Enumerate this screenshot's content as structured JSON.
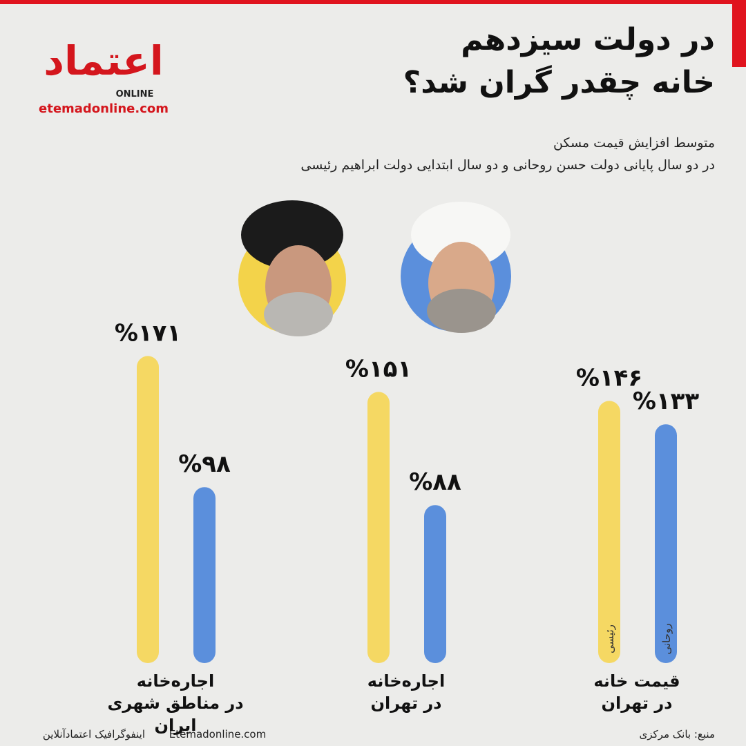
{
  "branding": {
    "logo": "اعتماد",
    "logo_sub": "ONLINE",
    "url": "etemadonline.com"
  },
  "chart_data": {
    "type": "bar",
    "title": [
      "در دولت سیزدهم",
      "خانه چقدر گران شد؟"
    ],
    "subtitle": [
      "متوسط افزایش قیمت مسکن",
      "در دو سال پایانی دولت حسن روحانی و دو سال ابتدایی دولت ابراهیم رئیسی"
    ],
    "categories": [
      "قیمت خانه\nدر تهران",
      "اجاره‌خانه\nدر تهران",
      "اجاره‌خانه\nدر مناطق شهری ایران"
    ],
    "series": [
      {
        "name": "رئیسی",
        "color": "#f5d863",
        "values": [
          146,
          151,
          171
        ],
        "value_labels": [
          "%۱۴۶",
          "%۱۵۱",
          "%۱۷۱"
        ]
      },
      {
        "name": "روحانی",
        "color": "#5b8fdc",
        "values": [
          133,
          88,
          98
        ],
        "value_labels": [
          "%۱۳۳",
          "%۸۸",
          "%۹۸"
        ]
      }
    ],
    "ylim": [
      0,
      175
    ],
    "source": "منبع: بانک مرکزی",
    "site": "Etemadonline.com",
    "credit": "اینفوگرافیک اعتمادآنلاین"
  }
}
